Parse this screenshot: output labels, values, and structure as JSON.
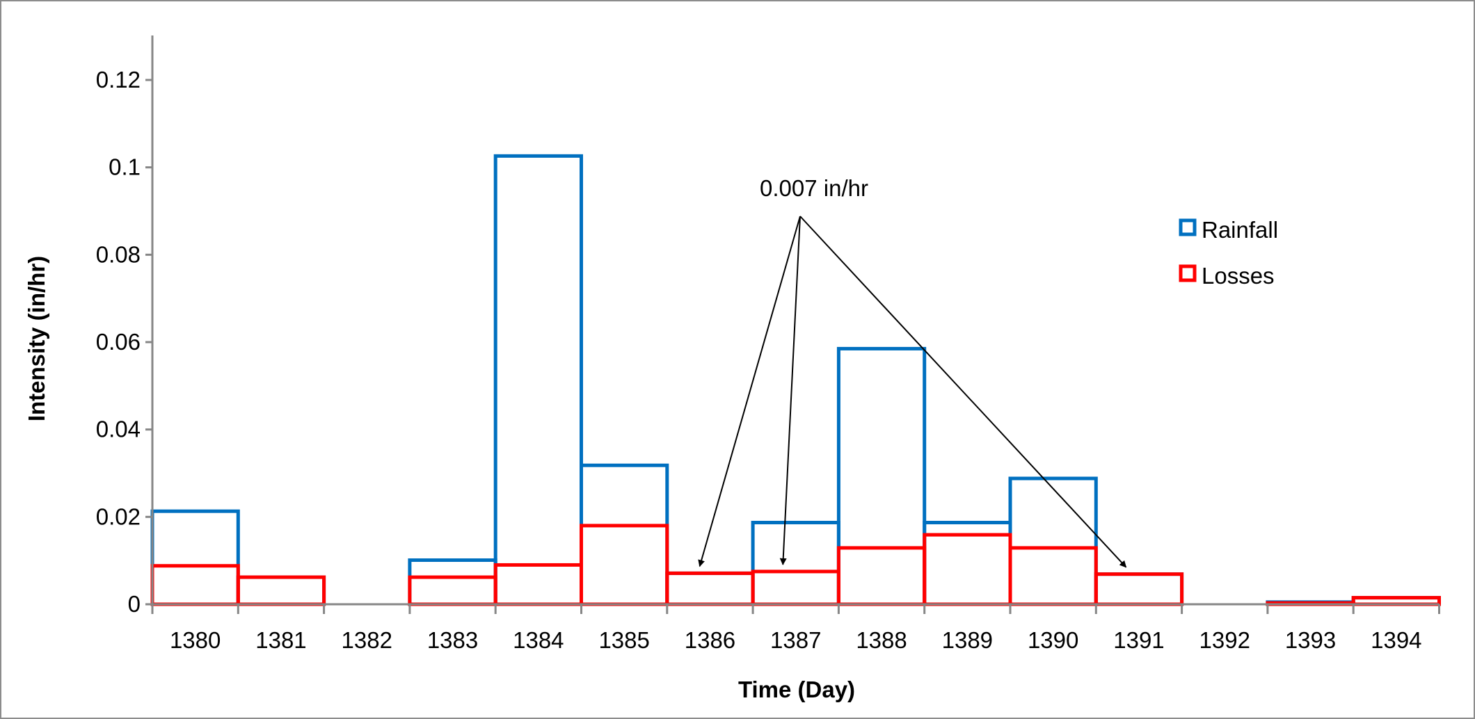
{
  "chart_data": {
    "type": "bar",
    "style": "step histogram (outlined bars)",
    "xlabel": "Time (Day)",
    "ylabel": "Intensity (in/hr)",
    "ylim": [
      0,
      0.13
    ],
    "yticks": [
      "0",
      "0.02",
      "0.04",
      "0.06",
      "0.08",
      "0.1",
      "0.12"
    ],
    "grid": false,
    "legend_position": "right",
    "categories": [
      "1380",
      "1381",
      "1382",
      "1383",
      "1384",
      "1385",
      "1386",
      "1387",
      "1388",
      "1389",
      "1390",
      "1391",
      "1392",
      "1393",
      "1394"
    ],
    "series": [
      {
        "name": "Rainfall",
        "color": "#0070C0",
        "values": [
          0.0213,
          0.0062,
          0,
          0.0101,
          0.1026,
          0.0318,
          0.0071,
          0.0187,
          0.0585,
          0.0187,
          0.0288,
          0.0069,
          0,
          0.0005,
          0.0015
        ]
      },
      {
        "name": "Losses",
        "color": "#FF0000",
        "values": [
          0.0088,
          0.0062,
          0,
          0.0062,
          0.009,
          0.018,
          0.0071,
          0.0075,
          0.0129,
          0.0159,
          0.0129,
          0.0069,
          0,
          0.0003,
          0.0015
        ]
      }
    ],
    "annotation": {
      "text": "0.007 in/hr",
      "points_to": [
        "1386",
        "1387",
        "1391"
      ]
    }
  }
}
